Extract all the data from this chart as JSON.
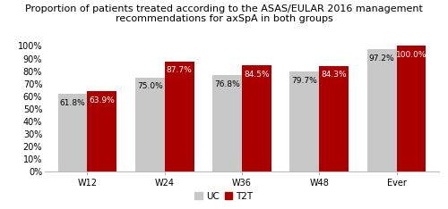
{
  "title": "Proportion of patients treated according to the ASAS/EULAR 2016 management\nrecommendations for axSpA in both groups",
  "categories": [
    "W12",
    "W24",
    "W36",
    "W48",
    "Ever"
  ],
  "uc_values": [
    61.8,
    75.0,
    76.8,
    79.7,
    97.2
  ],
  "t2t_values": [
    63.9,
    87.7,
    84.5,
    84.3,
    100.0
  ],
  "uc_labels": [
    "61.8%",
    "75.0%",
    "76.8%",
    "79.7%",
    "97.2%"
  ],
  "t2t_labels": [
    "63.9%",
    "87.7%",
    "84.5%",
    "84.3%",
    "100.0%"
  ],
  "uc_color": "#c8c8c8",
  "t2t_color": "#aa0000",
  "ylim": [
    0,
    100
  ],
  "yticks": [
    0,
    10,
    20,
    30,
    40,
    50,
    60,
    70,
    80,
    90,
    100
  ],
  "ytick_labels": [
    "0%",
    "10%",
    "20%",
    "30%",
    "40%",
    "50%",
    "60%",
    "70%",
    "80%",
    "90%",
    "100%"
  ],
  "legend_uc": "UC",
  "legend_t2t": "T2T",
  "bar_width": 0.38,
  "title_fontsize": 8.0,
  "label_fontsize": 6.5,
  "tick_fontsize": 7.0,
  "legend_fontsize": 7.5,
  "background_color": "#ffffff"
}
